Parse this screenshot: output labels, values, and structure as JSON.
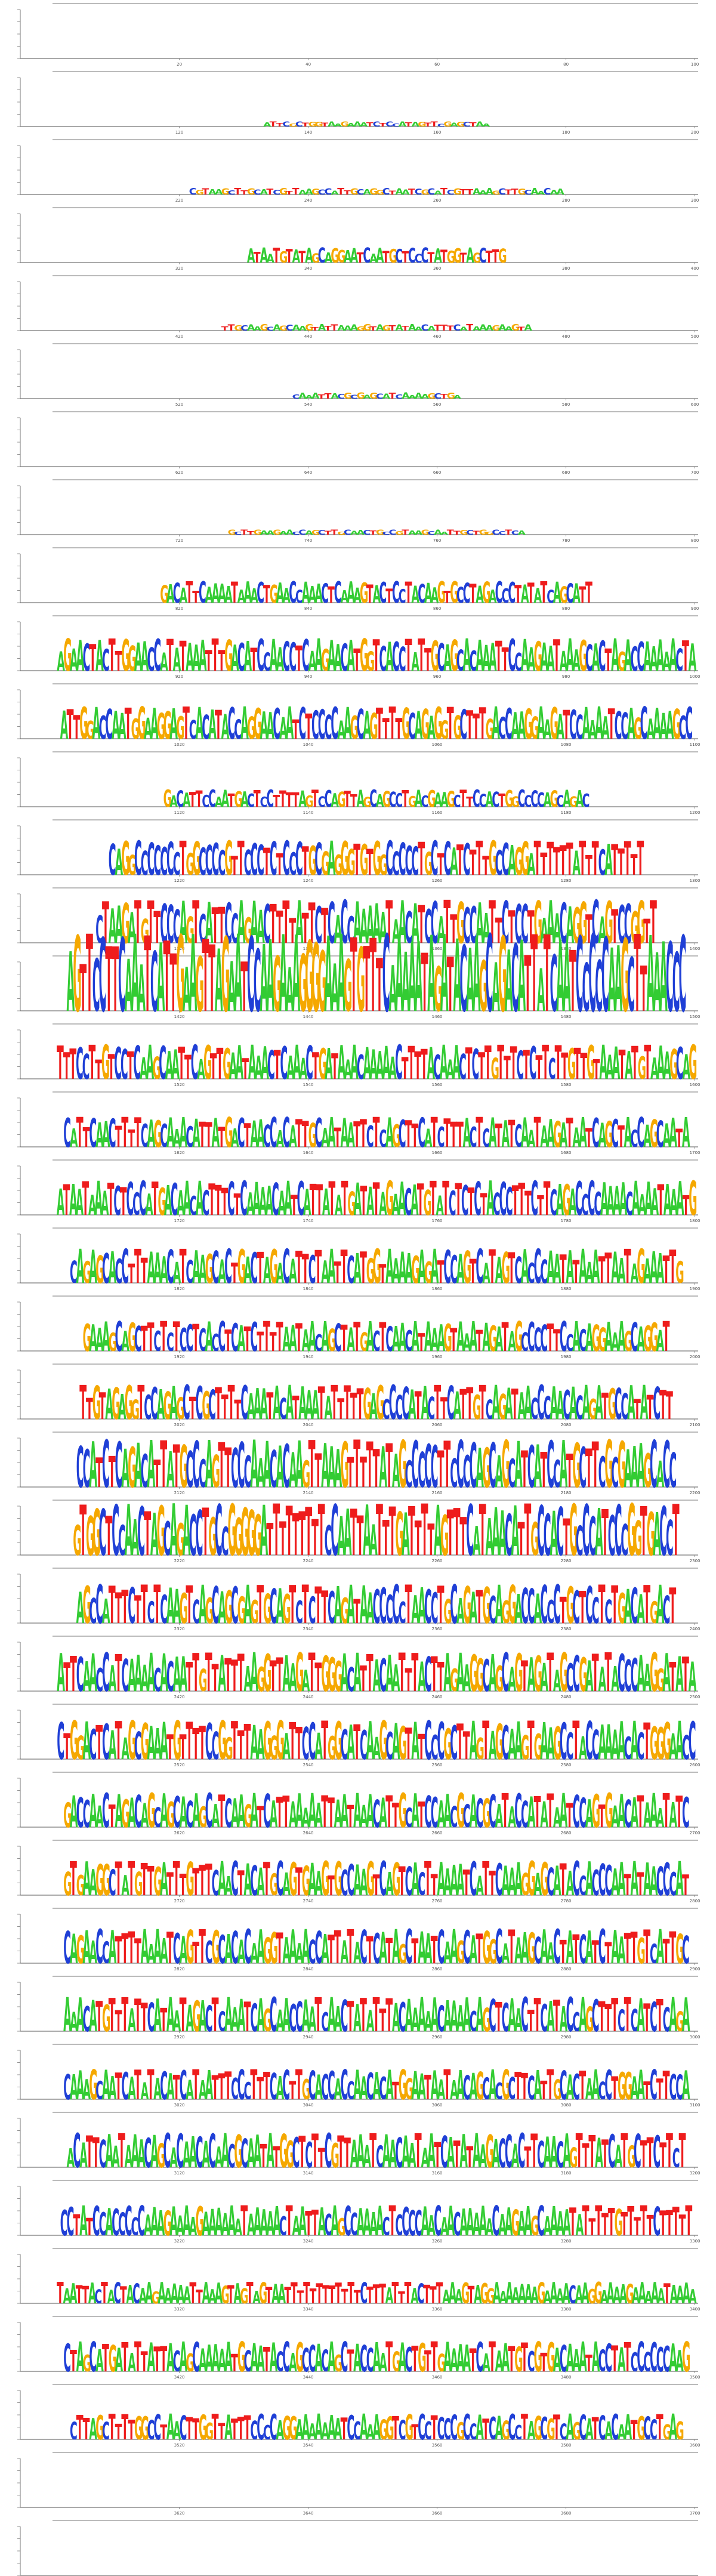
{
  "chart_data": {
    "type": "sequence-logo",
    "alphabet": [
      "A",
      "C",
      "G",
      "T"
    ],
    "colors": {
      "A": "#33cc33",
      "C": "#1f3fd6",
      "G": "#f5a800",
      "T": "#ee1c1c"
    },
    "positions_per_row": 100,
    "x_tick_step": 20,
    "rows": [
      {
        "start": 1,
        "x_ticks": [
          20,
          40,
          60,
          80,
          100
        ],
        "height": 0.05,
        "seq": ""
      },
      {
        "start": 101,
        "x_ticks": [
          120,
          140,
          160,
          180,
          200
        ],
        "height": 0.12,
        "seq": "ATTCGCTGGTAAGAAATCTCCATAGTTCGAGCTAA"
      },
      {
        "start": 201,
        "x_ticks": [
          220,
          240,
          260,
          280,
          300
        ],
        "height": 0.15,
        "seq": "CGTAAGCTTGCATCGTTAAGCCATTGCAGGCTAATCGCATCGTTAAAGCTTGCAACAA"
      },
      {
        "start": 301,
        "x_ticks": [
          320,
          340,
          360,
          380,
          400
        ],
        "height": 0.35,
        "seq": "ATAATGTATAGCAGGAATCAATGCTCCCTATGGTAGCTTG"
      },
      {
        "start": 401,
        "x_ticks": [
          420,
          440,
          460,
          480,
          500
        ],
        "height": 0.15,
        "seq": "TTGCAAGCAGCAAGTATTAAAGGTAGTATAACATTTCATAAAGAAGTA"
      },
      {
        "start": 501,
        "x_ticks": [
          520,
          540,
          560,
          580,
          600
        ],
        "height": 0.14,
        "seq": "CAAATTACGCGAGCATCAAAAGCTGA"
      },
      {
        "start": 601,
        "x_ticks": [
          620,
          640,
          660,
          680,
          700
        ],
        "height": 0.06,
        "seq": ""
      },
      {
        "start": 701,
        "x_ticks": [
          720,
          740,
          760,
          780,
          800
        ],
        "height": 0.12,
        "seq": "GCTTGAAGAACCAGCTTGCAACTGCCGTAAGCAATTGCTGGCCTCA"
      },
      {
        "start": 801,
        "x_ticks": [
          820,
          840,
          860,
          880,
          900
        ],
        "height": 0.5,
        "seq": "GACATTCAAAATAAACTGAACCAAACTCAAAGTACTCCTACAAGTGCCTAGACCCTATATCAGCATT"
      },
      {
        "start": 901,
        "x_ticks": [
          920,
          940,
          960,
          980,
          1000
        ],
        "height": 0.75,
        "seq": "AGAACTACTTGGAACCATATAAATTTGACATCCAACCTCAAGAACATGGTCACCTATTGCAGCACAAATTCCAAGAATAAAGCACTAGACCAAAAACTA"
      },
      {
        "start": 1001,
        "x_ticks": [
          1020,
          1040,
          1060,
          1080,
          1100
        ],
        "height": 0.75,
        "seq": "ATTGGACCAATGGAAGGAGTCACATACCAGGAACAATCTCCCCAAGCAGTTTTGCAGAGGTGCTTTGACCAAGGAAGATCCAAAATCCAGCAAAAGCC"
      },
      {
        "start": 1101,
        "x_ticks": [
          1120,
          1140,
          1160,
          1180,
          1200
        ],
        "height": 0.4,
        "seq": "GACATTCCAATGACTCCTTTTAGTCCAGTTAGCAGCCTGACGAAGCTTCCACTGGCCCCAGCAGAC"
      },
      {
        "start": 1201,
        "x_ticks": [
          1220,
          1240,
          1260,
          1280,
          1300
        ],
        "height": 0.8,
        "seq": "CAGGCCCCCCCTGGCCCCGTTCCCTCTCCCTGCGAGGGTGTGGCCCCCTGCTCATCTTTGCCAGGATTTTTTATTTCATTTTT"
      },
      {
        "start": 1301,
        "x_ticks": [
          1320,
          1340,
          1360,
          1380,
          1400
        ],
        "height": 1.0,
        "seq": "CTAAGATGTTCCCAGTCATTCCAGAACTTTTATTCTCACCAAAAATAACATCCATTGCCAATTCTCCTGAAACAGGTCAGTCCGGTT"
      },
      {
        "start": 1401,
        "x_ticks": [
          1420,
          1440,
          1460,
          1480,
          1500
        ],
        "height": 1.8,
        "seq": "AGTTCCTTCAAATCATTGAAGTTAGAATCCAAGAAAGGGGAAAGTGTTTCAAAAATAGATACAAGCAGACATTATCAATCCCCCAAGCTTAAACCC"
      },
      {
        "start": 1501,
        "x_ticks": [
          1520,
          1540,
          1560,
          1580,
          1600
        ],
        "height": 0.8,
        "seq": "TTTCCTTGTCCTCAAGCAATTCAGTTGAATAAACTCAAACTGATAAACAAAAACTTTTACAAACTCTTGTTTCTCTTCTTGTTGTAAATATGTAAAGCAG"
      },
      {
        "start": 1601,
        "x_ticks": [
          1620,
          1640,
          1660,
          1680,
          1700
        ],
        "height": 0.7,
        "seq": "CATTCAACTTTTCAGCAAACATTATGACTAACCACATTGCAATAATTCTCAGCTTCATCTTTACTCATATCAATAAGATAATCAGCTACCAGCAATA"
      },
      {
        "start": 1701,
        "x_ticks": [
          1720,
          1740,
          1760,
          1780,
          1800
        ],
        "height": 0.8,
        "seq": "ATAATAAATCTCCCATGACAACACTTTCTCAAAACAATCATTATATGATATAGAACATGTATCTCTCTACCCTTTCTTCAGACCCCAAAACAAAATAAATG"
      },
      {
        "start": 1801,
        "x_ticks": [
          1820,
          1840,
          1860,
          1880,
          1900
        ],
        "height": 0.8,
        "seq": "CAGAGCACCTTTAAACATCAAGCACTGACTAGACATTCTAATTCATGGTAAAAGAGATCCAGTCATAGTCACCCAATATAAATTAATAGAAATTG"
      },
      {
        "start": 1901,
        "x_ticks": [
          1920,
          1940,
          1960,
          1980,
          2000
        ],
        "height": 0.7,
        "seq": "GAAAGCAGCTTCTCTCCTCACCTCATCTTTTAATAACAGCTATGACTCAACATAAAGTAAATAGATAGCCCCTTCCACAGGAAAGCAGGAT"
      },
      {
        "start": 2001,
        "x_ticks": [
          2020,
          2040,
          2060,
          2080,
          2100
        ],
        "height": 0.8,
        "seq": "TTGTAGAGGTCCAGAGCTCGCTTTTCAAATACATAAATATTTTTGAGCCCCATACTTCATTGTCAGATAACCCAACACAGATGCCATATCTT"
      },
      {
        "start": 2101,
        "x_ticks": [
          2120,
          2140,
          2160,
          2180,
          2200
        ],
        "height": 1.1,
        "seq": "CCATCTCAGACATTATGCCCAGTTCCCAAACACAAGTTAAAGTTTTTATAGCCCCCTTCCCCAGCAGCATCATCCATGCTTCGCGAAAGCACC"
      },
      {
        "start": 2201,
        "x_ticks": [
          2220,
          2240,
          2260,
          2280,
          2300
        ],
        "height": 1.2,
        "seq": "GTGGCTCCAACTAGCAGACCTGCCGGGGGATTTTTTTTTCCAATTAATTTGATTTTAGTTTCATAAACATTGCCACTGCCCATCCCGGTGACCT"
      },
      {
        "start": 2301,
        "x_ticks": [
          2320,
          2340,
          2360,
          2380,
          2400
        ],
        "height": 0.9,
        "seq": "AGCCATTTCTTCTCAAGTCAGCAGCGAGTGCAGTCTCTTCAGATAACCCCCTAACCTGCAGATGCAGGACCACCCTGCTCCTCTGACATGACT"
      },
      {
        "start": 2401,
        "x_ticks": [
          2420,
          2440,
          2460,
          2480,
          2500
        ],
        "height": 0.9,
        "seq": "ATTCAACCATCAAAACACAATTGTTATTTAAGGTTAAGATTGGGACATTACAATTTACTTAGAAGGCAGCAGTAGATAGCCGATATACCCAAGGATATA"
      },
      {
        "start": 2501,
        "x_ticks": [
          2520,
          2540,
          2560,
          2580,
          2600
        ],
        "height": 0.9,
        "seq": "CTGGACTCATAGCGAAATGTTTTCCGGTTTAAGGGATTCCATGGCATCAAGCAGTATCCCGCTTAGTAGCAAGTGAAGCCTACCAAAACACTGGGAACC"
      },
      {
        "start": 2601,
        "x_ticks": [
          2620,
          2640,
          2660,
          2680,
          2700
        ],
        "height": 0.8,
        "seq": "GACCAACTAGACAGCAGCACAGCATCAAGATCATTAAAAATTAATAAACATTGCATCCAACGCACGCATACCATATAATCCAGTGAACATAAATATC"
      },
      {
        "start": 2701,
        "x_ticks": [
          2720,
          2740,
          2760,
          2780,
          2800
        ],
        "height": 0.8,
        "seq": "GTGAAGGCTATGTTGATTTGTTTCAACTACATGCAGTGAAGTGCCAAGTCAGTCACTTAAAATCATTCAAAGGAGCATACCACCCAATATAACCCAT"
      },
      {
        "start": 2801,
        "x_ticks": [
          2820,
          2840,
          2860,
          2880,
          2900
        ],
        "height": 0.8,
        "seq": "CAGAACCATTTTAAAATCAGTTCGCACACAAGGTAAAACCATTATACTCATAGCTAATCAAGCATGGCATAAGCAACTATCATCTAATTGTCATTGC"
      },
      {
        "start": 2901,
        "x_ticks": [
          2920,
          2940,
          2960,
          2980,
          3000
        ],
        "height": 0.8,
        "seq": "AAACATGTTTATTCATAATAGACTCAAATCAGCAACCAATCAACTATATTTACAAAAACAAAACAGCTCAACTTCATACCAGCTTTCTCATCTCAGA"
      },
      {
        "start": 3001,
        "x_ticks": [
          3020,
          3040,
          3060,
          3080,
          3100
        ],
        "height": 0.7,
        "seq": "CAAAGCAATCATATACATCATAATTTCCCTTTCACTTGCACCACCAACACATGGAATAATAACAGCACGCTTCATTGCACTAACCTGGAATCTTCCA"
      },
      {
        "start": 3101,
        "x_ticks": [
          3120,
          3140,
          3160,
          3180,
          3200
        ],
        "height": 0.8,
        "seq": "ACATTCAATAAACAGCACAACACAACGCAATATGGCTCTTCGTTAAATCAACAATAATCATATAAGACCACTTCAACAGTTTATCATGCTTCTTCT"
      },
      {
        "start": 3201,
        "x_ticks": [
          3220,
          3240,
          3260,
          3280,
          3300
        ],
        "height": 0.7,
        "seq": "CCTATCCACCCCCAAAGAAAAGAAAAAATAAAAACTAATTACAGCCAAAACTCCCCAACAACAAAAACAAGAAGCAAAATATTTTTGTTTTTCTTTTT"
      },
      {
        "start": 3301,
        "x_ticks": [
          3320,
          3340,
          3360,
          3380,
          3400
        ],
        "height": 0.5,
        "seq": "TAATTACTACTACAAGAAAAATTAAAGTAGTAGTAATTTTTTTTTTTTCTTTATTTACTTTAAAGTAGGAAAAAAAGAAAACAAGGAAAAGAAAAATAAAA"
      },
      {
        "start": 3401,
        "x_ticks": [
          3420,
          3440,
          3460,
          3480,
          3500
        ],
        "height": 0.7,
        "seq": "CTAGCATGATATTATTACAGCAAAAATGCAATACCAGCCACAGCTACCAATGACTGTTGAAAATCATAATGTCGTGACAAATACCTATCCCCCCAAG"
      },
      {
        "start": 3501,
        "x_ticks": [
          3520,
          3540,
          3560,
          3580,
          3600
        ],
        "height": 0.6,
        "seq": "CTTAGCTTTTGGCCTAACTTGGTTATTTCCCCAGGAAAAAAATCCAAAGGTCGTCCTCCCGCCATCAGCCTAGCGTCAGCATCACAATGCCTGAG"
      },
      {
        "start": 3601,
        "x_ticks": [
          3620,
          3640,
          3660,
          3680,
          3700
        ],
        "height": 0.06,
        "seq": ""
      },
      {
        "start": 3701,
        "x_ticks": [],
        "height": 0.1,
        "seq": ""
      }
    ]
  }
}
